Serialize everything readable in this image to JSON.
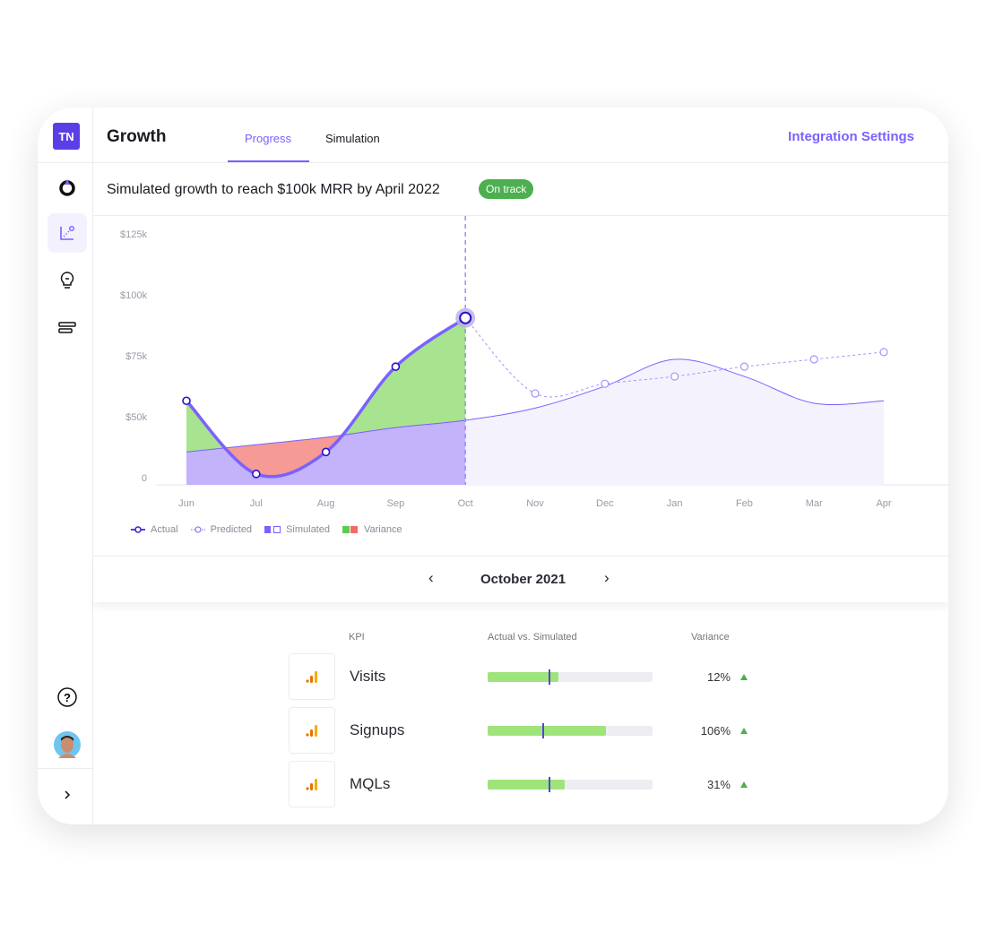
{
  "sidebar": {
    "logo": "TN",
    "items": [
      {
        "icon": "target-icon"
      },
      {
        "icon": "chart-scatter-icon",
        "active": true
      },
      {
        "icon": "lightbulb-icon"
      },
      {
        "icon": "list-icon"
      }
    ],
    "help_icon": "question-icon",
    "avatar": "avatar",
    "expand_icon": "chevron-right-icon"
  },
  "header": {
    "title": "Growth",
    "tabs": [
      {
        "label": "Progress",
        "active": true
      },
      {
        "label": "Simulation"
      }
    ],
    "integration": "Integration Settings"
  },
  "subheader": {
    "title": "Simulated growth to reach $100k MRR by April 2022",
    "badge": "On track",
    "badge_color": "#4caf50"
  },
  "chart_data": {
    "type": "line",
    "categories": [
      "Jun",
      "Jul",
      "Aug",
      "Sep",
      "Oct",
      "Nov",
      "Dec",
      "Jan",
      "Feb",
      "Mar",
      "Apr"
    ],
    "y_ticks": [
      "0",
      "$50k",
      "$75k",
      "$100k",
      "$125k"
    ],
    "y_tick_values": [
      0,
      50,
      75,
      100,
      125
    ],
    "series": [
      {
        "name": "Actual",
        "values": [
          58,
          28,
          37,
          72,
          92,
          null,
          null,
          null,
          null,
          null,
          null
        ],
        "color": "#7b61ff"
      },
      {
        "name": "Predicted",
        "values": [
          null,
          null,
          null,
          null,
          92,
          61,
          65,
          68,
          72,
          75,
          78
        ],
        "color": "#a592ff"
      },
      {
        "name": "Simulated",
        "values": [
          37,
          40,
          43,
          47,
          50,
          55,
          64,
          75,
          68,
          57,
          58
        ],
        "color": "#7b61ff"
      }
    ],
    "variance_colors": {
      "positive": "#a8e38f",
      "negative": "#f59a95"
    },
    "current_month": "Oct",
    "legend": [
      "Actual",
      "Predicted",
      "Simulated",
      "Variance"
    ],
    "legend_position": "bottom-left"
  },
  "month_nav": {
    "label": "October 2021",
    "prev_icon": "chevron-left-icon",
    "next_icon": "chevron-right-icon"
  },
  "kpi": {
    "headers": [
      "KPI",
      "Actual vs. Simulated",
      "Variance"
    ],
    "rows": [
      {
        "name": "Visits",
        "actual_pct": 43,
        "simulated_pct": 37,
        "variance": "12%",
        "trend": "up"
      },
      {
        "name": "Signups",
        "actual_pct": 72,
        "simulated_pct": 33,
        "variance": "106%",
        "trend": "up"
      },
      {
        "name": "MQLs",
        "actual_pct": 47,
        "simulated_pct": 37,
        "variance": "31%",
        "trend": "up"
      }
    ]
  }
}
